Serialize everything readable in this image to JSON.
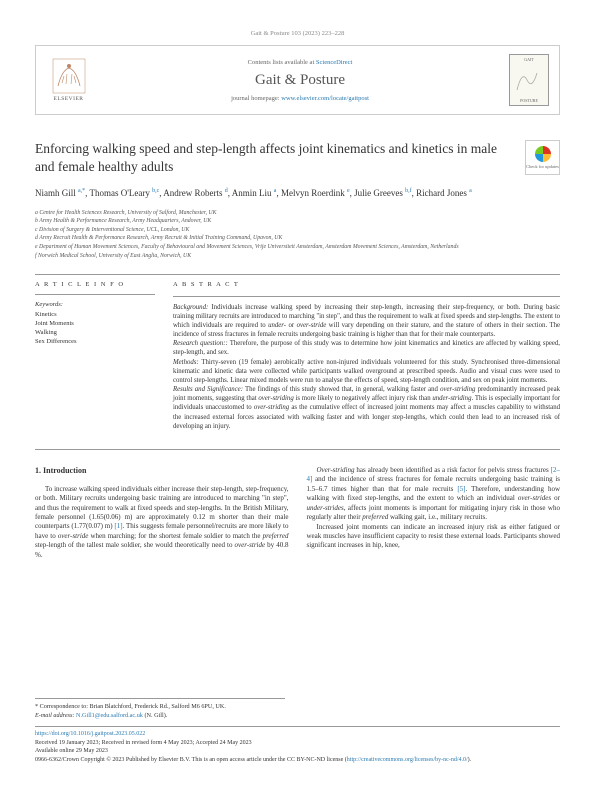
{
  "header": {
    "citation": "Gait & Posture 103 (2023) 223–228"
  },
  "top": {
    "publisher": "ELSEVIER",
    "avail_pre": "Contents lists available at ",
    "avail_link": "ScienceDirect",
    "journal": "Gait & Posture",
    "hp_pre": "journal homepage: ",
    "hp_link": "www.elsevier.com/locate/gaitpost",
    "cover_top": "GAIT",
    "cover_bot": "POSTURE"
  },
  "title": "Enforcing walking speed and step-length affects joint kinematics and kinetics in male and female healthy adults",
  "check": "Check for updates",
  "authors_html": "Niamh Gill <span class='sup'>a,*</span>, Thomas O'Leary <span class='sup'>b,c</span>, Andrew Roberts <span class='sup'>d</span>, Anmin Liu <span class='sup'>a</span>, Melvyn Roerdink <span class='sup'>e</span>, Julie Greeves <span class='sup'>b,f</span>, Richard Jones <span class='sup'>a</span>",
  "affiliations": [
    "a Centre for Health Sciences Research, University of Salford, Manchester, UK",
    "b Army Health & Performance Research, Army Headquarters, Andover, UK",
    "c Division of Surgery & Interventional Science, UCL, London, UK",
    "d Army Recruit Health & Performance Research, Army Recruit & Initial Training Command, Upavon, UK",
    "e Department of Human Movement Sciences, Faculty of Behavioural and Movement Sciences, Vrije Universiteit Amsterdam, Amsterdam Movement Sciences, Amsterdam, Netherlands",
    "f Norwich Medical School, University of East Anglia, Norwich, UK"
  ],
  "info": {
    "head": "A R T I C L E  I N F O",
    "kw_head": "Keywords:",
    "keywords": [
      "Kinetics",
      "Joint Moments",
      "Walking",
      "Sex Differences"
    ]
  },
  "abstract": {
    "head": "A B S T R A C T",
    "paras": [
      "<em>Background:</em> Individuals increase walking speed by increasing their step-length, increasing their step-frequency, or both. During basic training military recruits are introduced to marching \"in step\", and thus the requirement to walk at fixed speeds and step-lengths. The extent to which individuals are required to <em>under-</em> or <em>over-stride</em> will vary depending on their stature, and the stature of others in their section. The incidence of stress fractures in female recruits undergoing basic training is higher than that for their male counterparts.",
      "<em>Research question::</em> Therefore, the purpose of this study was to determine how joint kinematics and kinetics are affected by walking speed, step-length, and sex.",
      "<em>Methods:</em> Thirty-seven (19 female) aerobically active non-injured individuals volunteered for this study. Synchronised three-dimensional kinematic and kinetic data were collected while participants walked overground at prescribed speeds. Audio and visual cues were used to control step-lengths. Linear mixed models were run to analyse the effects of speed, step-length condition, and sex on peak joint moments.",
      "<em>Results and Significance:</em> The findings of this study showed that, in general, walking faster and <em>over-striding</em> predominantly increased peak joint moments, suggesting that <em>over-striding</em> is more likely to negatively affect injury risk than <em>under-striding</em>. This is especially important for individuals unaccustomed to <em>over-striding</em> as the cumulative effect of increased joint moments may affect a muscles capability to withstand the increased external forces associated with walking faster and with longer step-lengths, which could then lead to an increased risk of developing an injury."
    ]
  },
  "intro": {
    "head": "1. Introduction",
    "col1": [
      "To increase walking speed individuals either increase their step-length, step-frequency, or both. Military recruits undergoing basic training are introduced to marching \"in step\", and thus the requirement to walk at fixed speeds and step-lengths. In the British Military, female personnel (1.65(0.06) m) are approximately 0.12 m shorter than their male counterparts (1.77(0.07) m) <a>[1]</a>. This suggests female personnel/recruits are more likely to have to <em>over-stride</em> when marching; for the shortest female soldier to match the <em>preferred</em> step-length of the tallest male soldier, she would theoretically need to <em>over-stride</em> by 40.8 %."
    ],
    "col2": [
      "<em>Over-striding</em> has already been identified as a risk factor for pelvis stress fractures <a>[2–4]</a> and the incidence of stress fractures for female recruits undergoing basic training is 1.5–6.7 times higher than that for male recruits <a>[5]</a>. Therefore, understanding how walking with fixed step-lengths, and the extent to which an individual <em>over-strides</em> or <em>under-strides</em>, affects joint moments is important for mitigating injury risk in those who regularly alter their <em>preferred</em> walking gait, i.e., military recruits.",
      "Increased joint moments can indicate an increased injury risk as either fatigued or weak muscles have insufficient capacity to resist these external loads. Participants showed significant increases in hip, knee,"
    ]
  },
  "corr": {
    "line1": "* Correspondence to: Brian Blatchford, Frederick Rd., Salford M6 6PU, UK.",
    "line2_pre": "E-mail address: ",
    "email": "N.Gill1@edu.salford.ac.uk",
    "line2_post": " (N. Gill)."
  },
  "doi": {
    "link": "https://doi.org/10.1016/j.gaitpost.2023.05.022",
    "received": "Received 19 January 2023; Received in revised form 4 May 2023; Accepted 24 May 2023",
    "online": "Available online 29 May 2023",
    "copyright": "0966-6362/Crown Copyright © 2023 Published by Elsevier B.V. This is an open access article under the CC BY-NC-ND license (",
    "cc_link": "http://creativecommons.org/licenses/by-nc-nd/4.0/",
    "copyright_post": ")."
  }
}
